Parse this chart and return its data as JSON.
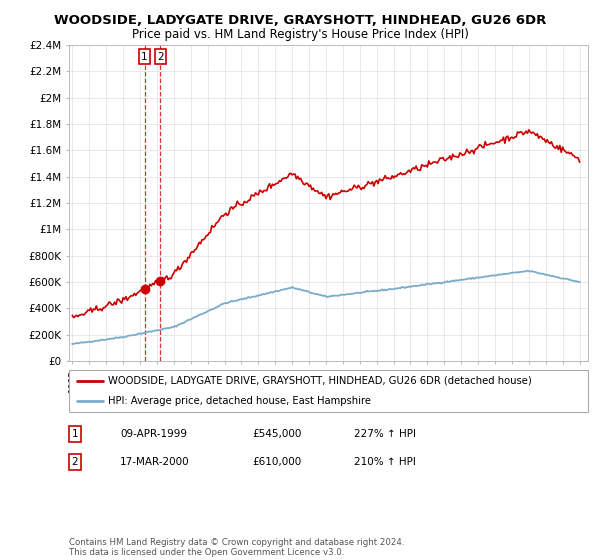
{
  "title": "WOODSIDE, LADYGATE DRIVE, GRAYSHOTT, HINDHEAD, GU26 6DR",
  "subtitle": "Price paid vs. HM Land Registry's House Price Index (HPI)",
  "legend_label_red": "WOODSIDE, LADYGATE DRIVE, GRAYSHOTT, HINDHEAD, GU26 6DR (detached house)",
  "legend_label_blue": "HPI: Average price, detached house, East Hampshire",
  "sale1_label": "1",
  "sale1_date": "09-APR-1999",
  "sale1_price": "£545,000",
  "sale1_hpi": "227% ↑ HPI",
  "sale2_label": "2",
  "sale2_date": "17-MAR-2000",
  "sale2_price": "£610,000",
  "sale2_hpi": "210% ↑ HPI",
  "footer": "Contains HM Land Registry data © Crown copyright and database right 2024.\nThis data is licensed under the Open Government Licence v3.0.",
  "red_color": "#cc0000",
  "blue_color": "#7aabca",
  "ylim": [
    0,
    2400000
  ],
  "xlim_start": 1994.8,
  "xlim_end": 2025.5,
  "sale1_x": 1999.27,
  "sale1_y": 545000,
  "sale2_x": 2000.21,
  "sale2_y": 610000,
  "vline_x1": 1999.27,
  "vline_x2": 2000.21
}
